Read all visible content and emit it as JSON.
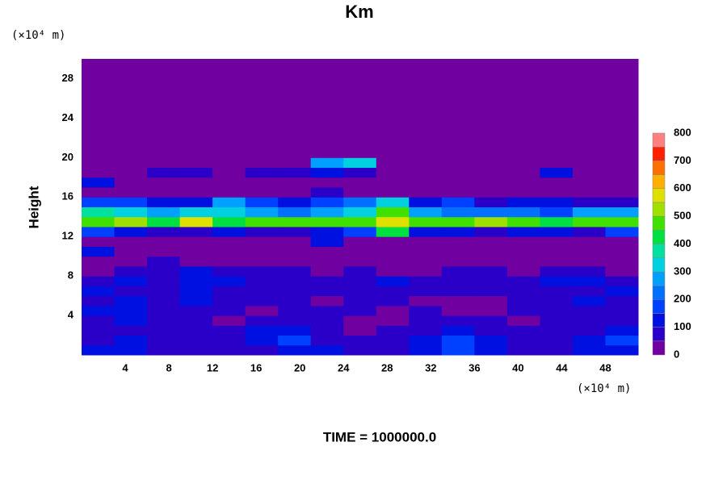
{
  "chart_data": {
    "type": "contour",
    "title": "Km",
    "y_unit": "(×10⁴ m)",
    "x_unit": "(×10⁴ m)",
    "y_label": "Height",
    "footer": "TIME = 1000000.0",
    "xlim": [
      0,
      51
    ],
    "ylim": [
      0,
      30
    ],
    "xticks": [
      4,
      8,
      12,
      16,
      20,
      24,
      28,
      32,
      36,
      40,
      44,
      48
    ],
    "yticks": [
      4,
      8,
      12,
      16,
      20,
      24,
      28
    ],
    "levels": [
      0,
      50,
      100,
      150,
      200,
      250,
      300,
      350,
      400,
      450,
      500,
      550,
      600,
      650,
      700,
      750,
      800
    ],
    "colorbar_ticks": [
      0,
      100,
      200,
      300,
      400,
      500,
      600,
      700,
      800
    ],
    "colors": [
      "#7000a0",
      "#2a00c8",
      "#0010e0",
      "#0040ff",
      "#0070ff",
      "#00a0ff",
      "#00d0e0",
      "#00e0a0",
      "#00e040",
      "#40e000",
      "#a0e000",
      "#e0e000",
      "#ffb000",
      "#ff7000",
      "#ff2000",
      "#ff8080"
    ],
    "x": [
      1.5,
      4.5,
      7.5,
      10.5,
      13.5,
      16.5,
      19.5,
      22.5,
      25.5,
      28.5,
      31.5,
      34.5,
      37.5,
      40.5,
      43.5,
      46.5,
      49.5
    ],
    "y": [
      0.5,
      1.5,
      2.5,
      3.5,
      4.5,
      5.5,
      6.5,
      7.5,
      8.5,
      9.5,
      10.5,
      11.5,
      12.5,
      13.5,
      14.5,
      15.5,
      16.5,
      17.5,
      18.5,
      19.5,
      20.5,
      21.5,
      22.5,
      23.5,
      24.5,
      25.5,
      26.5,
      27.5,
      28.5,
      29.5
    ],
    "z": [
      [
        100,
        100,
        50,
        50,
        50,
        50,
        100,
        100,
        50,
        50,
        100,
        150,
        100,
        50,
        50,
        100,
        100
      ],
      [
        50,
        100,
        50,
        50,
        50,
        100,
        150,
        50,
        50,
        50,
        100,
        150,
        100,
        50,
        50,
        100,
        150
      ],
      [
        50,
        50,
        50,
        50,
        50,
        100,
        100,
        50,
        0,
        50,
        50,
        100,
        50,
        50,
        50,
        50,
        100
      ],
      [
        50,
        100,
        50,
        50,
        0,
        50,
        50,
        50,
        0,
        0,
        50,
        50,
        50,
        0,
        50,
        50,
        50
      ],
      [
        100,
        100,
        50,
        50,
        50,
        0,
        50,
        50,
        50,
        0,
        50,
        0,
        0,
        50,
        50,
        50,
        50
      ],
      [
        50,
        100,
        50,
        100,
        50,
        50,
        50,
        0,
        50,
        50,
        0,
        0,
        0,
        50,
        50,
        100,
        50
      ],
      [
        100,
        50,
        50,
        100,
        50,
        50,
        50,
        50,
        50,
        50,
        50,
        50,
        50,
        50,
        50,
        50,
        100
      ],
      [
        50,
        100,
        50,
        100,
        100,
        50,
        50,
        50,
        50,
        100,
        50,
        50,
        50,
        50,
        100,
        100,
        50
      ],
      [
        0,
        50,
        50,
        100,
        50,
        50,
        50,
        0,
        50,
        0,
        0,
        50,
        50,
        0,
        50,
        50,
        0
      ],
      [
        0,
        0,
        50,
        0,
        0,
        0,
        0,
        0,
        0,
        0,
        0,
        0,
        0,
        0,
        0,
        0,
        0
      ],
      [
        100,
        0,
        0,
        0,
        0,
        0,
        0,
        0,
        0,
        0,
        0,
        0,
        0,
        0,
        0,
        0,
        0
      ],
      [
        0,
        0,
        0,
        0,
        0,
        0,
        0,
        100,
        0,
        0,
        0,
        0,
        0,
        0,
        0,
        0,
        0
      ],
      [
        150,
        100,
        50,
        50,
        100,
        50,
        50,
        100,
        150,
        400,
        100,
        100,
        50,
        100,
        100,
        50,
        150
      ],
      [
        450,
        500,
        400,
        550,
        400,
        450,
        450,
        450,
        450,
        550,
        450,
        450,
        500,
        450,
        400,
        450,
        450
      ],
      [
        350,
        300,
        250,
        300,
        300,
        250,
        200,
        250,
        300,
        450,
        250,
        200,
        200,
        200,
        150,
        250,
        250
      ],
      [
        150,
        150,
        100,
        100,
        250,
        150,
        100,
        150,
        200,
        300,
        100,
        150,
        50,
        100,
        100,
        50,
        50
      ],
      [
        0,
        0,
        0,
        0,
        0,
        0,
        0,
        50,
        0,
        0,
        0,
        0,
        0,
        0,
        0,
        0,
        0
      ],
      [
        100,
        0,
        0,
        0,
        0,
        0,
        0,
        0,
        0,
        0,
        0,
        0,
        0,
        0,
        0,
        0,
        0
      ],
      [
        0,
        0,
        50,
        50,
        0,
        50,
        50,
        100,
        50,
        0,
        0,
        0,
        0,
        0,
        100,
        0,
        0
      ],
      [
        0,
        0,
        0,
        0,
        0,
        0,
        0,
        250,
        300,
        0,
        0,
        0,
        0,
        0,
        0,
        0,
        0
      ],
      [
        0,
        0,
        0,
        0,
        0,
        0,
        0,
        0,
        0,
        0,
        0,
        0,
        0,
        0,
        0,
        0,
        0
      ],
      [
        0,
        0,
        0,
        0,
        0,
        0,
        0,
        0,
        0,
        0,
        0,
        0,
        0,
        0,
        0,
        0,
        0
      ],
      [
        0,
        0,
        0,
        0,
        0,
        0,
        0,
        0,
        0,
        0,
        0,
        0,
        0,
        0,
        0,
        0,
        0
      ],
      [
        0,
        0,
        0,
        0,
        0,
        0,
        0,
        0,
        0,
        0,
        0,
        0,
        0,
        0,
        0,
        0,
        0
      ],
      [
        0,
        0,
        0,
        0,
        0,
        0,
        0,
        0,
        0,
        0,
        0,
        0,
        0,
        0,
        0,
        0,
        0
      ],
      [
        0,
        0,
        0,
        0,
        0,
        0,
        0,
        0,
        0,
        0,
        0,
        0,
        0,
        0,
        0,
        0,
        0
      ],
      [
        0,
        0,
        0,
        0,
        0,
        0,
        0,
        0,
        0,
        0,
        0,
        0,
        0,
        0,
        0,
        0,
        0
      ],
      [
        0,
        0,
        0,
        0,
        0,
        0,
        0,
        0,
        0,
        0,
        0,
        0,
        0,
        0,
        0,
        0,
        0
      ],
      [
        0,
        0,
        0,
        0,
        0,
        0,
        0,
        0,
        0,
        0,
        0,
        0,
        0,
        0,
        0,
        0,
        0
      ],
      [
        0,
        0,
        0,
        0,
        0,
        0,
        0,
        0,
        0,
        0,
        0,
        0,
        0,
        0,
        0,
        0,
        0
      ]
    ]
  }
}
